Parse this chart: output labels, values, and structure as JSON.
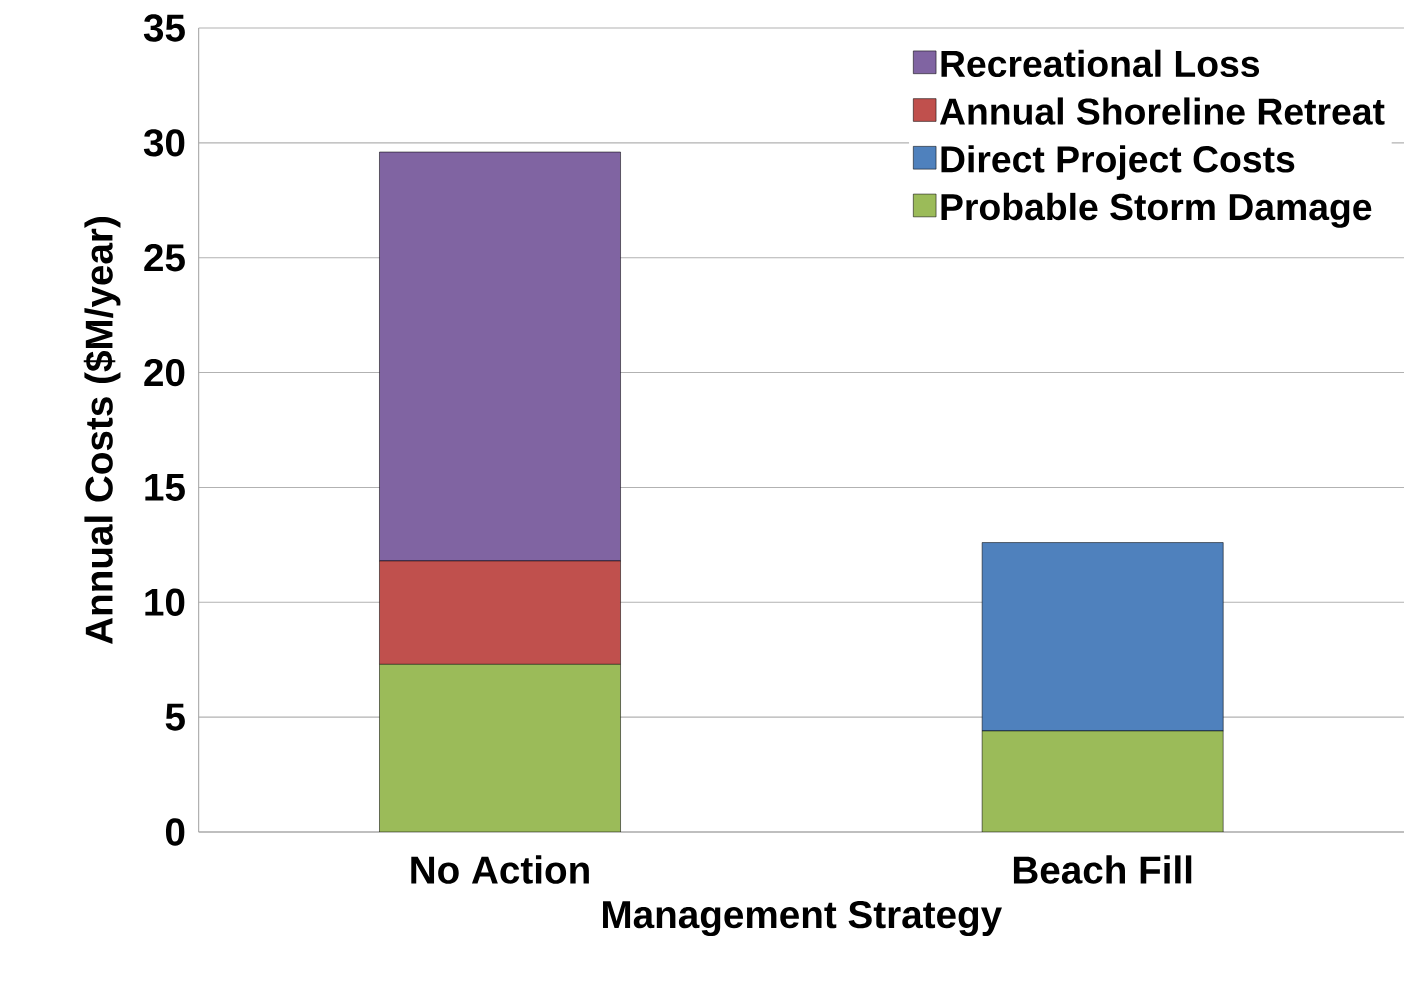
{
  "chart_data": {
    "type": "bar",
    "stacked": true,
    "xlabel": "Management Strategy",
    "ylabel": "Annual Costs ($M/year)",
    "categories": [
      "No Action",
      "Beach Fill"
    ],
    "series": [
      {
        "name": "Probable Storm Damage",
        "color": "#9bbb59",
        "values": [
          7.3,
          4.4
        ]
      },
      {
        "name": "Direct Project Costs",
        "color": "#4f81bd",
        "values": [
          null,
          8.2
        ]
      },
      {
        "name": "Annual Shoreline Retreat",
        "color": "#c0504d",
        "values": [
          4.5,
          null
        ]
      },
      {
        "name": "Recreational Loss",
        "color": "#8064a2",
        "values": [
          17.8,
          null
        ]
      }
    ],
    "ylim": [
      0,
      35
    ],
    "yticks": [
      0,
      5,
      10,
      15,
      20,
      25,
      30,
      35
    ],
    "grid": "y",
    "legend": "top right"
  }
}
